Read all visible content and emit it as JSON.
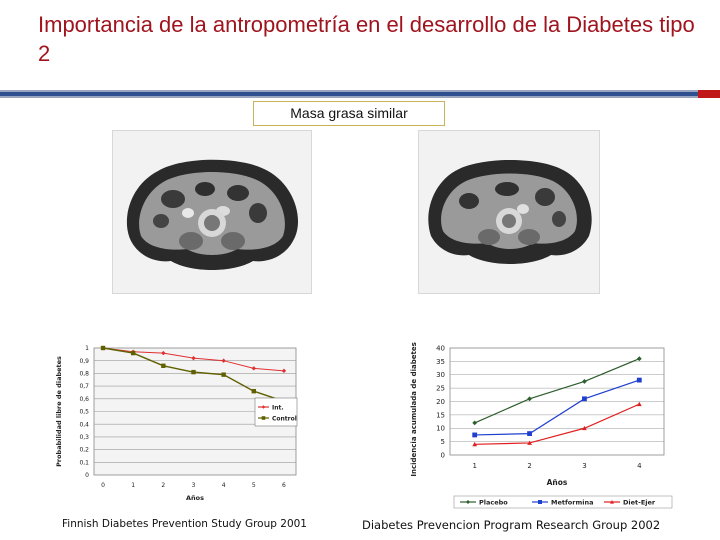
{
  "header": {
    "title": "Importancia de la antropometría en el desarrollo de la Diabetes tipo 2",
    "subtitle": "Masa grasa similar"
  },
  "images": {
    "left_ct": "ct-scan-abdomen-icon",
    "right_ct": "ct-scan-abdomen-icon"
  },
  "captions": {
    "left": "Finnish Diabetes Prevention Study Group 2001",
    "right": "Diabetes Prevencion Program Research Group 2002"
  },
  "colors": {
    "title": "#a0141e",
    "rule": "#2f4f8f",
    "rule_accent": "#c01818"
  },
  "chart_data": [
    {
      "type": "line",
      "title": "",
      "xlabel": "Años",
      "ylabel": "Probabilidad libre de diabetes",
      "x": [
        0,
        1,
        2,
        3,
        4,
        5,
        6
      ],
      "xticklabels": [
        "0",
        "1",
        "2",
        "3",
        "4",
        "5",
        "6"
      ],
      "yticklabels": [
        "0",
        "0,1",
        "0,2",
        "0,3",
        "0,4",
        "0,5",
        "0,6",
        "0,7",
        "0,8",
        "0,9",
        "1"
      ],
      "ylim": [
        0,
        1
      ],
      "grid": true,
      "legend": "top-right",
      "series": [
        {
          "name": "Int.",
          "color": "#e03030",
          "values": [
            1.0,
            0.97,
            0.96,
            0.92,
            0.9,
            0.84,
            0.82
          ]
        },
        {
          "name": "Control",
          "color": "#606000",
          "values": [
            1.0,
            0.96,
            0.86,
            0.81,
            0.79,
            0.66,
            0.58
          ]
        }
      ]
    },
    {
      "type": "line",
      "title": "",
      "xlabel": "Años",
      "ylabel": "Incidencia acumulada de diabetes (%)",
      "x": [
        1,
        2,
        3,
        4
      ],
      "xticklabels": [
        "1",
        "2",
        "3",
        "4"
      ],
      "yticklabels": [
        "0",
        "5",
        "10",
        "15",
        "20",
        "25",
        "30",
        "35",
        "40"
      ],
      "ylim": [
        0,
        40
      ],
      "grid": true,
      "legend": "bottom",
      "series": [
        {
          "name": "Placebo",
          "color": "#2e5e2e",
          "values": [
            12,
            21,
            27.5,
            36
          ]
        },
        {
          "name": "Metformina",
          "color": "#1f3fcf",
          "values": [
            7.5,
            8,
            21,
            28
          ]
        },
        {
          "name": "Diet-Ejer",
          "color": "#e02020",
          "values": [
            4,
            4.5,
            10,
            19
          ]
        }
      ]
    }
  ]
}
